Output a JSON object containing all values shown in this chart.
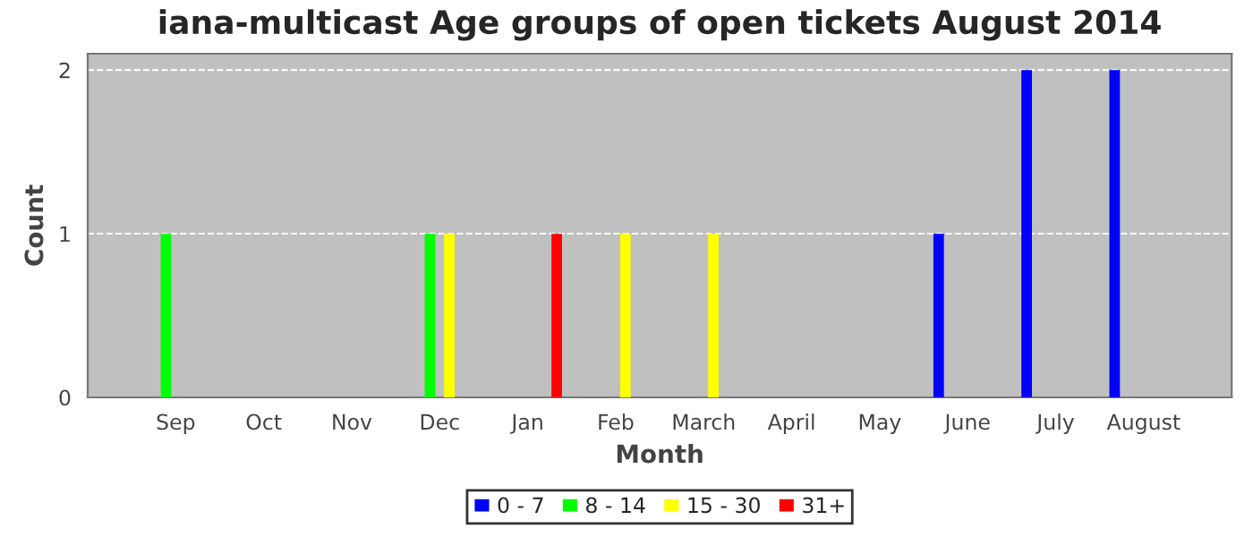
{
  "chart_data": {
    "type": "bar",
    "title": "iana-multicast Age groups of open tickets August 2014",
    "xlabel": "Month",
    "ylabel": "Count",
    "categories": [
      "Sep",
      "Oct",
      "Nov",
      "Dec",
      "Jan",
      "Feb",
      "March",
      "April",
      "May",
      "June",
      "July",
      "August"
    ],
    "series": [
      {
        "name": "0 - 7",
        "color": "#0000ff",
        "values": [
          null,
          null,
          null,
          null,
          null,
          null,
          null,
          null,
          null,
          1,
          2,
          2
        ]
      },
      {
        "name": "8 - 14",
        "color": "#00ff00",
        "values": [
          1,
          null,
          null,
          1,
          null,
          null,
          null,
          null,
          null,
          null,
          null,
          null
        ]
      },
      {
        "name": "15 - 30",
        "color": "#ffff00",
        "values": [
          null,
          null,
          null,
          1,
          null,
          1,
          1,
          null,
          null,
          null,
          null,
          null
        ]
      },
      {
        "name": "31+",
        "color": "#ff0000",
        "values": [
          null,
          null,
          null,
          null,
          1,
          null,
          null,
          null,
          null,
          null,
          null,
          null
        ]
      }
    ],
    "ylim": [
      0,
      2.1
    ],
    "yticks": [
      0,
      1,
      2
    ],
    "grid": "y",
    "legend": "bottom"
  }
}
